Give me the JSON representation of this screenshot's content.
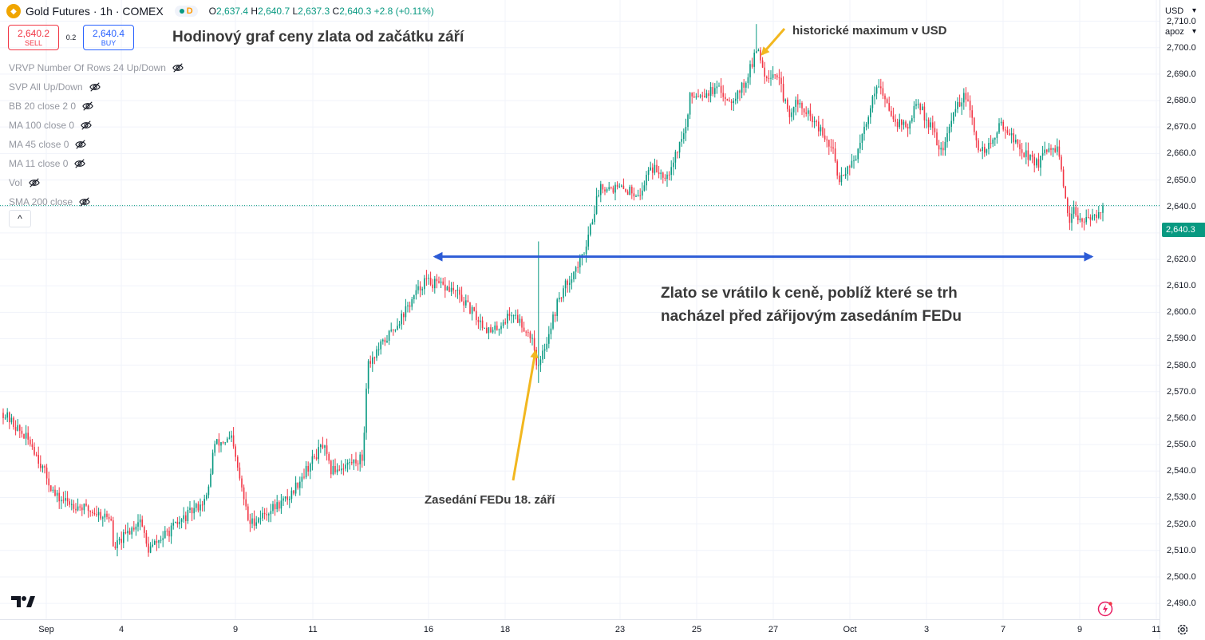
{
  "header": {
    "symbol_title": "Gold Futures · 1h · COMEX",
    "status_label": "D",
    "ohlc": {
      "o_label": "O",
      "o_value": "2,637.4",
      "h_label": "H",
      "h_value": "2,640.7",
      "l_label": "L",
      "l_value": "2,637.3",
      "c_label": "C",
      "c_value": "2,640.3",
      "change": "+2.8 (+0.11%)"
    }
  },
  "trade": {
    "sell_price": "2,640.2",
    "sell_label": "SELL",
    "spread": "0.2",
    "buy_price": "2,640.4",
    "buy_label": "BUY"
  },
  "indicators": [
    "VRVP Number Of Rows 24 Up/Down",
    "SVP All Up/Down",
    "BB 20 close 2 0",
    "MA 100 close 0",
    "MA 45 close 0",
    "MA 11 close 0",
    "Vol",
    "SMA 200 close"
  ],
  "collapse_label": "^",
  "annotations": {
    "title": "Hodinový graf ceny zlata od začátku září",
    "max": "historické maximum v USD",
    "fed": "Zasedání FEDu 18. září",
    "main_line1": "Zlato se vrátilo k ceně, poblíž které se trh",
    "main_line2": "nacházel před zářijovým zasedáním FEDu"
  },
  "axis": {
    "currency": "USD",
    "scale_mode": "apoz",
    "last_price_label": "2,640.3"
  },
  "colors": {
    "up": "#089981",
    "down": "#f23645",
    "arrow_blue": "#2c5bd6",
    "arrow_gold": "#f2b71f",
    "last_price_line": "#089981"
  },
  "chart_data": {
    "type": "candlestick",
    "title": "Hodinový graf ceny zlata od začátku září",
    "ylim": [
      2484,
      2718
    ],
    "y_ticks": [
      2490,
      2500,
      2510,
      2520,
      2530,
      2540,
      2550,
      2560,
      2570,
      2580,
      2590,
      2600,
      2610,
      2620,
      2630,
      2640,
      2650,
      2660,
      2670,
      2680,
      2690,
      2700,
      2710
    ],
    "y_tick_labels": [
      "2,490.0",
      "2,500.0",
      "2,510.0",
      "2,520.0",
      "2,530.0",
      "2,540.0",
      "2,550.0",
      "2,560.0",
      "2,570.0",
      "2,580.0",
      "2,590.0",
      "2,600.0",
      "2,610.0",
      "2,620.0",
      "2,630.0",
      "2,640.0",
      "2,650.0",
      "2,660.0",
      "2,670.0",
      "2,680.0",
      "2,690.0",
      "2,700.0",
      "2,710.0"
    ],
    "x_ticks": [
      "Sep",
      "4",
      "9",
      "11",
      "16",
      "18",
      "23",
      "25",
      "27",
      "Oct",
      "3",
      "7",
      "9",
      "11"
    ],
    "anchors": [
      {
        "x": "Sep 3",
        "price": 2562
      },
      {
        "x": "Sep 3",
        "price": 2550
      },
      {
        "x": "Sep 4",
        "price": 2530
      },
      {
        "x": "Sep 4",
        "price": 2522
      },
      {
        "x": "Sep 5",
        "price": 2508
      },
      {
        "x": "Sep 5",
        "price": 2522
      },
      {
        "x": "Sep 6",
        "price": 2510
      },
      {
        "x": "Sep 6",
        "price": 2520
      },
      {
        "x": "Sep 6",
        "price": 2530
      },
      {
        "x": "Sep 9",
        "price": 2550
      },
      {
        "x": "Sep 9",
        "price": 2552
      },
      {
        "x": "Sep 10",
        "price": 2520
      },
      {
        "x": "Sep 10",
        "price": 2530
      },
      {
        "x": "Sep 11",
        "price": 2538
      },
      {
        "x": "Sep 11",
        "price": 2550
      },
      {
        "x": "Sep 12",
        "price": 2540
      },
      {
        "x": "Sep 12",
        "price": 2545
      },
      {
        "x": "Sep 13",
        "price": 2580
      },
      {
        "x": "Sep 13",
        "price": 2595
      },
      {
        "x": "Sep 13",
        "price": 2612
      },
      {
        "x": "Sep 16",
        "price": 2612
      },
      {
        "x": "Sep 16",
        "price": 2608
      },
      {
        "x": "Sep 17",
        "price": 2598
      },
      {
        "x": "Sep 18",
        "price": 2592
      },
      {
        "x": "Sep 18",
        "price": 2600
      },
      {
        "x": "Sep 18",
        "price": 2590
      },
      {
        "x": "Sep 19",
        "price": 2578
      },
      {
        "x": "Sep 19",
        "price": 2605
      },
      {
        "x": "Sep 20",
        "price": 2612
      },
      {
        "x": "Sep 20",
        "price": 2620
      },
      {
        "x": "Sep 20",
        "price": 2640
      },
      {
        "x": "Sep 23",
        "price": 2648
      },
      {
        "x": "Sep 23",
        "price": 2645
      },
      {
        "x": "Sep 24",
        "price": 2655
      },
      {
        "x": "Sep 24",
        "price": 2652
      },
      {
        "x": "Sep 24",
        "price": 2670
      },
      {
        "x": "Sep 25",
        "price": 2682
      },
      {
        "x": "Sep 25",
        "price": 2684
      },
      {
        "x": "Sep 26",
        "price": 2680
      },
      {
        "x": "Sep 26",
        "price": 2686
      },
      {
        "x": "Sep 26",
        "price": 2700
      },
      {
        "x": "Sep 27",
        "price": 2690
      },
      {
        "x": "Sep 27",
        "price": 2690
      },
      {
        "x": "Sep 27",
        "price": 2672
      },
      {
        "x": "Sep 30",
        "price": 2680
      },
      {
        "x": "Sep 30",
        "price": 2672
      },
      {
        "x": "Sep 30",
        "price": 2660
      },
      {
        "x": "Oct 1",
        "price": 2650
      },
      {
        "x": "Oct 1",
        "price": 2660
      },
      {
        "x": "Oct 1",
        "price": 2688
      },
      {
        "x": "Oct 2",
        "price": 2680
      },
      {
        "x": "Oct 2",
        "price": 2672
      },
      {
        "x": "Oct 2",
        "price": 2670
      },
      {
        "x": "Oct 3",
        "price": 2680
      },
      {
        "x": "Oct 3",
        "price": 2668
      },
      {
        "x": "Oct 4",
        "price": 2660
      },
      {
        "x": "Oct 4",
        "price": 2678
      },
      {
        "x": "Oct 7",
        "price": 2682
      },
      {
        "x": "Oct 7",
        "price": 2660
      },
      {
        "x": "Oct 7",
        "price": 2665
      },
      {
        "x": "Oct 8",
        "price": 2672
      },
      {
        "x": "Oct 8",
        "price": 2662
      },
      {
        "x": "Oct 8",
        "price": 2656
      },
      {
        "x": "Oct 9",
        "price": 2660
      },
      {
        "x": "Oct 9",
        "price": 2662
      },
      {
        "x": "Oct 9",
        "price": 2632
      },
      {
        "x": "Oct 10",
        "price": 2638
      },
      {
        "x": "Oct 10",
        "price": 2634
      },
      {
        "x": "Oct 10",
        "price": 2640.3
      }
    ],
    "last_close": 2640.3,
    "record_high": 2708.9,
    "fed_meeting_candle": {
      "x": "Sep 18",
      "high": 2626.8,
      "low": 2573.3
    },
    "horizontal_level": 2621
  }
}
